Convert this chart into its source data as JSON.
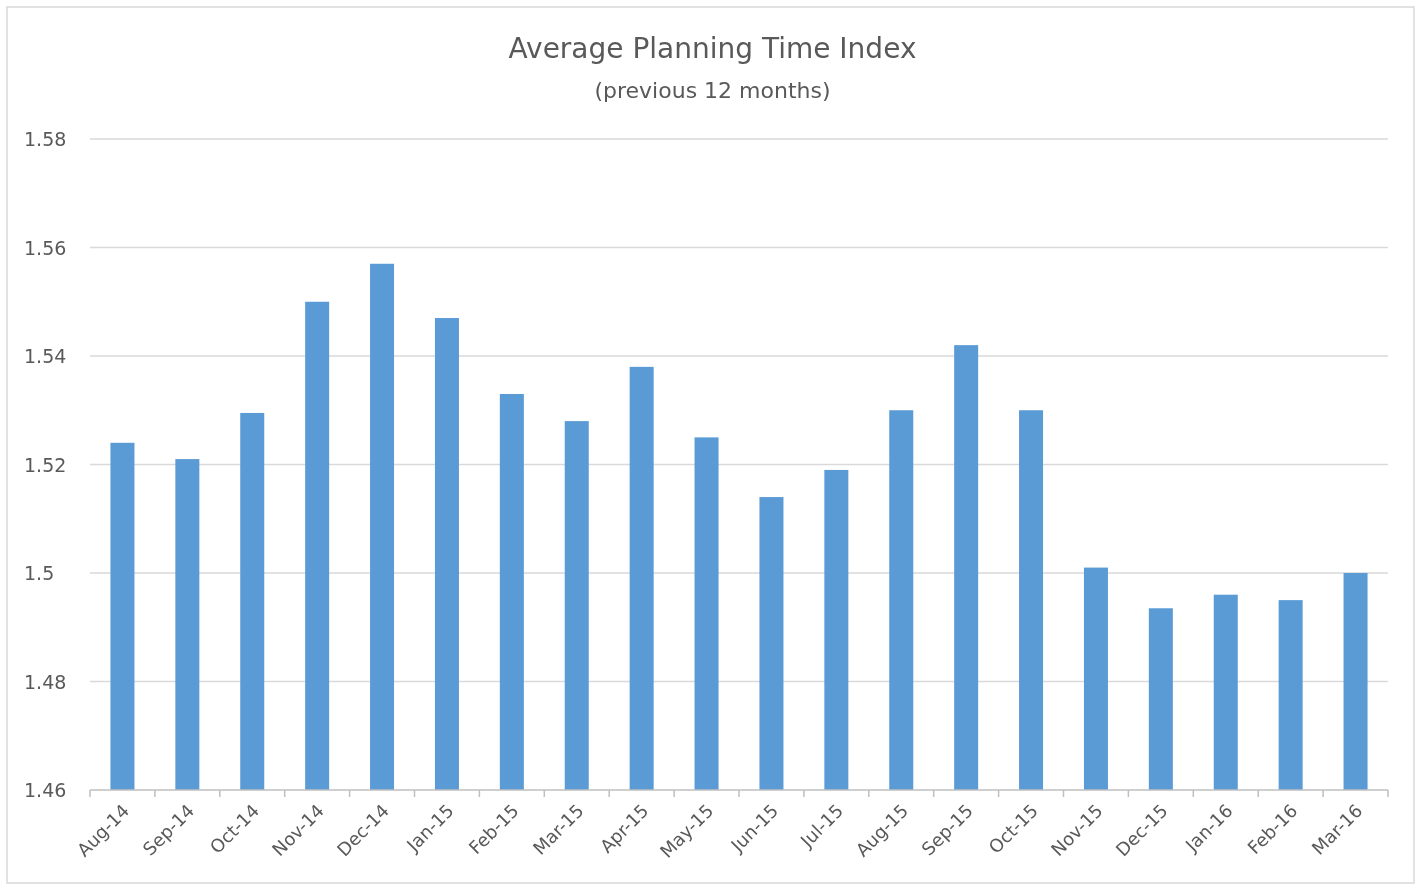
{
  "chart_data": {
    "type": "bar",
    "title": "Average Planning Time Index",
    "subtitle": "(previous 12 months)",
    "categories": [
      "Aug-14",
      "Sep-14",
      "Oct-14",
      "Nov-14",
      "Dec-14",
      "Jan-15",
      "Feb-15",
      "Mar-15",
      "Apr-15",
      "May-15",
      "Jun-15",
      "Jul-15",
      "Aug-15",
      "Sep-15",
      "Oct-15",
      "Nov-15",
      "Dec-15",
      "Jan-16",
      "Feb-16",
      "Mar-16"
    ],
    "values": [
      1.524,
      1.521,
      1.5295,
      1.55,
      1.557,
      1.547,
      1.533,
      1.528,
      1.538,
      1.525,
      1.514,
      1.519,
      1.53,
      1.542,
      1.53,
      1.501,
      1.4935,
      1.496,
      1.495,
      1.5
    ],
    "color": "#5b9bd5",
    "ylim": [
      1.46,
      1.58
    ],
    "yticks": [
      1.46,
      1.48,
      1.5,
      1.52,
      1.54,
      1.56,
      1.58
    ],
    "grid": "y"
  }
}
